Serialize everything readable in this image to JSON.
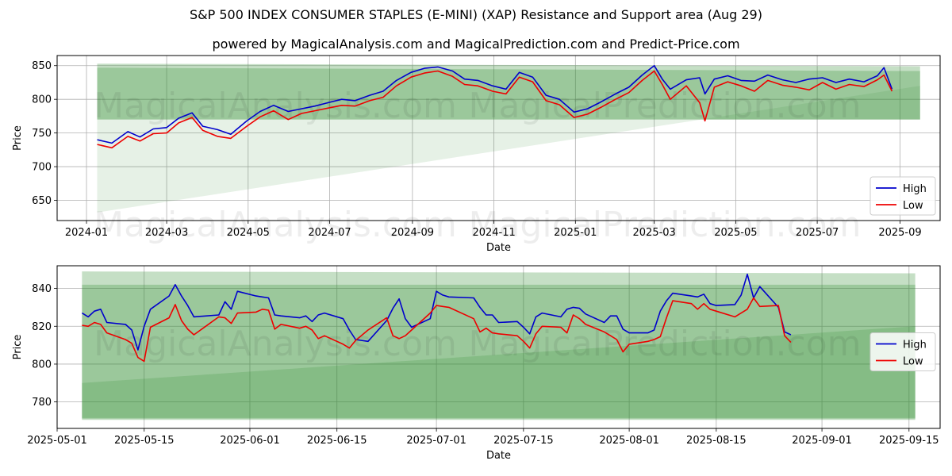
{
  "title": "S&P 500 INDEX CONSUMER STAPLES (E-MINI) (XAP) Resistance and Support area (Aug 29)",
  "subtitle": "powered by MagicalAnalysis.com and MagicalPrediction.com and Predict-Price.com",
  "watermark_left": "MagicalAnalysis.com",
  "watermark_right": "MagicalPrediction.com",
  "colors": {
    "high": "#0000cc",
    "low": "#ee0000",
    "band": "#2e8b2e"
  },
  "chart_data": [
    {
      "type": "line",
      "id": "top",
      "xlabel": "Date",
      "ylabel": "Price",
      "ylim": [
        620,
        865
      ],
      "xlim": [
        "2023-12-10",
        "2025-10-01"
      ],
      "y_ticks": [
        650,
        700,
        750,
        800,
        850
      ],
      "x_ticks": [
        "2024-01",
        "2024-03",
        "2024-05",
        "2024-07",
        "2024-09",
        "2024-11",
        "2025-01",
        "2025-03",
        "2025-05",
        "2025-07",
        "2025-09"
      ],
      "legend": [
        "High",
        "Low"
      ],
      "legend_position": "lower right",
      "bands": [
        {
          "from": "2024-01-09",
          "to": "2025-09-16",
          "lower_start": 770,
          "lower_end": 770,
          "upper_start": 853,
          "upper_end": 849
        },
        {
          "from": "2024-01-09",
          "to": "2025-09-16",
          "lower_start": 770,
          "lower_end": 770,
          "upper_start": 847,
          "upper_end": 842
        },
        {
          "from": "2024-01-09",
          "to": "2025-09-16",
          "lower_start": 632,
          "lower_end": 820,
          "upper_start": 770,
          "upper_end": 770
        }
      ],
      "series": [
        {
          "name": "High",
          "dates": [
            "2024-01-09",
            "2024-01-20",
            "2024-02-01",
            "2024-02-10",
            "2024-02-20",
            "2024-03-01",
            "2024-03-10",
            "2024-03-20",
            "2024-03-28",
            "2024-04-08",
            "2024-04-18",
            "2024-04-30",
            "2024-05-10",
            "2024-05-20",
            "2024-05-31",
            "2024-06-10",
            "2024-06-20",
            "2024-06-30",
            "2024-07-10",
            "2024-07-20",
            "2024-07-31",
            "2024-08-10",
            "2024-08-20",
            "2024-08-31",
            "2024-09-10",
            "2024-09-20",
            "2024-10-01",
            "2024-10-10",
            "2024-10-20",
            "2024-10-31",
            "2024-11-10",
            "2024-11-20",
            "2024-11-30",
            "2024-12-10",
            "2024-12-20",
            "2024-12-31",
            "2025-01-10",
            "2025-01-20",
            "2025-01-31",
            "2025-02-10",
            "2025-02-20",
            "2025-03-01",
            "2025-03-07",
            "2025-03-13",
            "2025-03-25",
            "2025-04-04",
            "2025-04-08",
            "2025-04-15",
            "2025-04-25",
            "2025-05-05",
            "2025-05-15",
            "2025-05-25",
            "2025-06-05",
            "2025-06-15",
            "2025-06-25",
            "2025-07-05",
            "2025-07-15",
            "2025-07-25",
            "2025-08-05",
            "2025-08-15",
            "2025-08-20",
            "2025-08-26"
          ],
          "values": [
            740,
            735,
            752,
            744,
            756,
            758,
            772,
            780,
            760,
            755,
            748,
            768,
            782,
            791,
            782,
            786,
            790,
            795,
            800,
            798,
            806,
            812,
            828,
            840,
            846,
            848,
            842,
            830,
            828,
            820,
            815,
            840,
            833,
            806,
            800,
            781,
            786,
            796,
            808,
            818,
            836,
            850,
            830,
            815,
            829,
            832,
            808,
            830,
            835,
            828,
            827,
            836,
            829,
            825,
            830,
            832,
            825,
            830,
            826,
            835,
            847,
            815
          ]
        },
        {
          "name": "Low",
          "dates": [
            "2024-01-09",
            "2024-01-20",
            "2024-02-01",
            "2024-02-10",
            "2024-02-20",
            "2024-03-01",
            "2024-03-10",
            "2024-03-20",
            "2024-03-28",
            "2024-04-08",
            "2024-04-18",
            "2024-04-30",
            "2024-05-10",
            "2024-05-20",
            "2024-05-31",
            "2024-06-10",
            "2024-06-20",
            "2024-06-30",
            "2024-07-10",
            "2024-07-20",
            "2024-07-31",
            "2024-08-10",
            "2024-08-20",
            "2024-08-31",
            "2024-09-10",
            "2024-09-20",
            "2024-10-01",
            "2024-10-10",
            "2024-10-20",
            "2024-10-31",
            "2024-11-10",
            "2024-11-20",
            "2024-11-30",
            "2024-12-10",
            "2024-12-20",
            "2024-12-31",
            "2025-01-10",
            "2025-01-20",
            "2025-01-31",
            "2025-02-10",
            "2025-02-20",
            "2025-03-01",
            "2025-03-07",
            "2025-03-13",
            "2025-03-25",
            "2025-04-04",
            "2025-04-08",
            "2025-04-15",
            "2025-04-25",
            "2025-05-05",
            "2025-05-15",
            "2025-05-25",
            "2025-06-05",
            "2025-06-15",
            "2025-06-25",
            "2025-07-05",
            "2025-07-15",
            "2025-07-25",
            "2025-08-05",
            "2025-08-15",
            "2025-08-20",
            "2025-08-26"
          ],
          "values": [
            733,
            728,
            745,
            738,
            749,
            750,
            765,
            773,
            754,
            745,
            742,
            760,
            774,
            783,
            770,
            779,
            783,
            787,
            791,
            790,
            798,
            803,
            820,
            833,
            839,
            842,
            834,
            822,
            820,
            812,
            808,
            833,
            826,
            798,
            792,
            773,
            778,
            788,
            800,
            810,
            828,
            842,
            822,
            800,
            820,
            795,
            768,
            818,
            826,
            820,
            812,
            828,
            821,
            818,
            814,
            825,
            815,
            822,
            819,
            829,
            836,
            812
          ]
        }
      ]
    },
    {
      "type": "line",
      "id": "bottom",
      "xlabel": "Date",
      "ylabel": "Price",
      "ylim": [
        766,
        852
      ],
      "xlim": [
        "2025-05-01",
        "2025-09-20"
      ],
      "y_ticks": [
        780,
        800,
        820,
        840
      ],
      "x_ticks": [
        "2025-05-01",
        "2025-05-15",
        "2025-06-01",
        "2025-06-15",
        "2025-07-01",
        "2025-07-15",
        "2025-08-01",
        "2025-08-15",
        "2025-09-01",
        "2025-09-15"
      ],
      "legend": [
        "High",
        "Low"
      ],
      "legend_position": "center right",
      "bands": [
        {
          "from": "2025-05-05",
          "to": "2025-09-16",
          "lower_start": 770.5,
          "lower_end": 770.5,
          "upper_start": 849,
          "upper_end": 848
        },
        {
          "from": "2025-05-05",
          "to": "2025-09-16",
          "lower_start": 771.5,
          "lower_end": 771.5,
          "upper_start": 842,
          "upper_end": 842
        },
        {
          "from": "2025-05-05",
          "to": "2025-09-16",
          "lower_start": 771,
          "lower_end": 771,
          "upper_start": 790,
          "upper_end": 820
        }
      ],
      "series": [
        {
          "name": "High",
          "dates": [
            "2025-05-05",
            "2025-05-06",
            "2025-05-07",
            "2025-05-08",
            "2025-05-09",
            "2025-05-12",
            "2025-05-13",
            "2025-05-14",
            "2025-05-15",
            "2025-05-16",
            "2025-05-19",
            "2025-05-20",
            "2025-05-21",
            "2025-05-22",
            "2025-05-23",
            "2025-05-27",
            "2025-05-28",
            "2025-05-29",
            "2025-05-30",
            "2025-06-02",
            "2025-06-03",
            "2025-06-04",
            "2025-06-05",
            "2025-06-06",
            "2025-06-09",
            "2025-06-10",
            "2025-06-11",
            "2025-06-12",
            "2025-06-13",
            "2025-06-16",
            "2025-06-17",
            "2025-06-18",
            "2025-06-20",
            "2025-06-23",
            "2025-06-24",
            "2025-06-25",
            "2025-06-26",
            "2025-06-27",
            "2025-06-30",
            "2025-07-01",
            "2025-07-02",
            "2025-07-03",
            "2025-07-07",
            "2025-07-08",
            "2025-07-09",
            "2025-07-10",
            "2025-07-11",
            "2025-07-14",
            "2025-07-15",
            "2025-07-16",
            "2025-07-17",
            "2025-07-18",
            "2025-07-21",
            "2025-07-22",
            "2025-07-23",
            "2025-07-24",
            "2025-07-25",
            "2025-07-28",
            "2025-07-29",
            "2025-07-30",
            "2025-07-31",
            "2025-08-01",
            "2025-08-04",
            "2025-08-05",
            "2025-08-06",
            "2025-08-07",
            "2025-08-08",
            "2025-08-11",
            "2025-08-12",
            "2025-08-13",
            "2025-08-14",
            "2025-08-15",
            "2025-08-18",
            "2025-08-19",
            "2025-08-20",
            "2025-08-21",
            "2025-08-22",
            "2025-08-25",
            "2025-08-26",
            "2025-08-27"
          ],
          "values": [
            827,
            825,
            828,
            829,
            822,
            821,
            818,
            807.5,
            820,
            829,
            836,
            842,
            836,
            831,
            825,
            826,
            833,
            829,
            838.5,
            836,
            835.5,
            835,
            826,
            825.5,
            824.5,
            825.5,
            822.5,
            826,
            827,
            824,
            818,
            813,
            812,
            823,
            829.5,
            834.5,
            824,
            819.5,
            824,
            838.5,
            836.5,
            835.5,
            835,
            830,
            826,
            826,
            822,
            822.5,
            819.5,
            816,
            825,
            827,
            825,
            829,
            830,
            829.5,
            826.5,
            822,
            825.5,
            825.5,
            818.5,
            816.5,
            816.5,
            818,
            828,
            833.5,
            837.5,
            836,
            835.5,
            837,
            832,
            831,
            831.5,
            836.5,
            847.5,
            835,
            841,
            830,
            817,
            815.5
          ]
        },
        {
          "name": "Low",
          "dates": [
            "2025-05-05",
            "2025-05-06",
            "2025-05-07",
            "2025-05-08",
            "2025-05-09",
            "2025-05-12",
            "2025-05-13",
            "2025-05-14",
            "2025-05-15",
            "2025-05-16",
            "2025-05-19",
            "2025-05-20",
            "2025-05-21",
            "2025-05-22",
            "2025-05-23",
            "2025-05-27",
            "2025-05-28",
            "2025-05-29",
            "2025-05-30",
            "2025-06-02",
            "2025-06-03",
            "2025-06-04",
            "2025-06-05",
            "2025-06-06",
            "2025-06-09",
            "2025-06-10",
            "2025-06-11",
            "2025-06-12",
            "2025-06-13",
            "2025-06-16",
            "2025-06-17",
            "2025-06-18",
            "2025-06-20",
            "2025-06-23",
            "2025-06-24",
            "2025-06-25",
            "2025-06-26",
            "2025-06-27",
            "2025-06-30",
            "2025-07-01",
            "2025-07-02",
            "2025-07-03",
            "2025-07-07",
            "2025-07-08",
            "2025-07-09",
            "2025-07-10",
            "2025-07-11",
            "2025-07-14",
            "2025-07-15",
            "2025-07-16",
            "2025-07-17",
            "2025-07-18",
            "2025-07-21",
            "2025-07-22",
            "2025-07-23",
            "2025-07-24",
            "2025-07-25",
            "2025-07-28",
            "2025-07-29",
            "2025-07-30",
            "2025-07-31",
            "2025-08-01",
            "2025-08-04",
            "2025-08-05",
            "2025-08-06",
            "2025-08-07",
            "2025-08-08",
            "2025-08-11",
            "2025-08-12",
            "2025-08-13",
            "2025-08-14",
            "2025-08-15",
            "2025-08-18",
            "2025-08-19",
            "2025-08-20",
            "2025-08-21",
            "2025-08-22",
            "2025-08-25",
            "2025-08-26",
            "2025-08-27"
          ],
          "values": [
            820.5,
            820,
            822,
            821,
            816.5,
            813,
            811,
            803.5,
            801.5,
            819.5,
            824.5,
            831.5,
            823,
            818.5,
            815.5,
            825,
            824.5,
            821.5,
            827,
            827.5,
            829,
            828.5,
            818.5,
            821,
            819,
            820,
            818,
            813.5,
            815,
            810.5,
            808.5,
            812.5,
            818,
            824.5,
            815,
            813.5,
            815,
            818,
            827,
            831,
            830.5,
            830,
            824,
            817,
            819,
            816.5,
            816,
            815,
            812,
            808.5,
            816,
            820,
            819.5,
            816.5,
            826,
            824,
            821,
            817,
            815,
            813,
            806.5,
            810.5,
            812,
            813,
            814.5,
            824.5,
            833.5,
            832,
            829,
            832,
            829,
            828,
            825,
            827,
            829,
            835,
            830.5,
            831,
            815,
            811.5
          ]
        }
      ]
    }
  ]
}
